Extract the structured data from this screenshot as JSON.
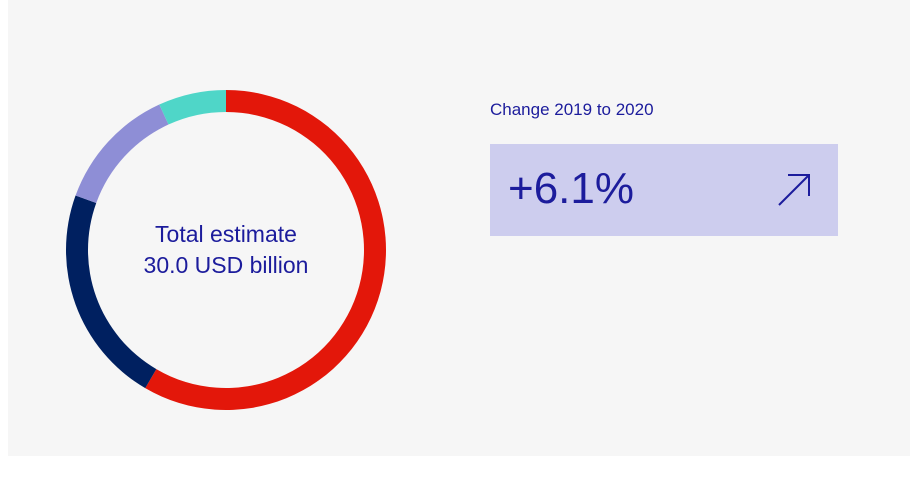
{
  "chart_data": {
    "type": "pie",
    "variant": "donut",
    "center_label": [
      "Total estimate",
      "30.0 USD billion"
    ],
    "slices": [
      {
        "value": 55.5,
        "color": "#e3170a"
      },
      {
        "value": 21.0,
        "color": "#002060"
      },
      {
        "value": 12.0,
        "color": "#8e8ed6"
      },
      {
        "value": 6.5,
        "color": "#4fd6c8"
      }
    ],
    "start_angle_deg": 0,
    "direction": "clockwise"
  },
  "change": {
    "title": "Change 2019 to 2020",
    "value": "+6.1%",
    "trend_icon": "arrow-up-right-icon"
  },
  "colors": {
    "text": "#1c1c9c",
    "box_bg": "#cdcdee",
    "panel_bg": "#f6f6f6"
  }
}
